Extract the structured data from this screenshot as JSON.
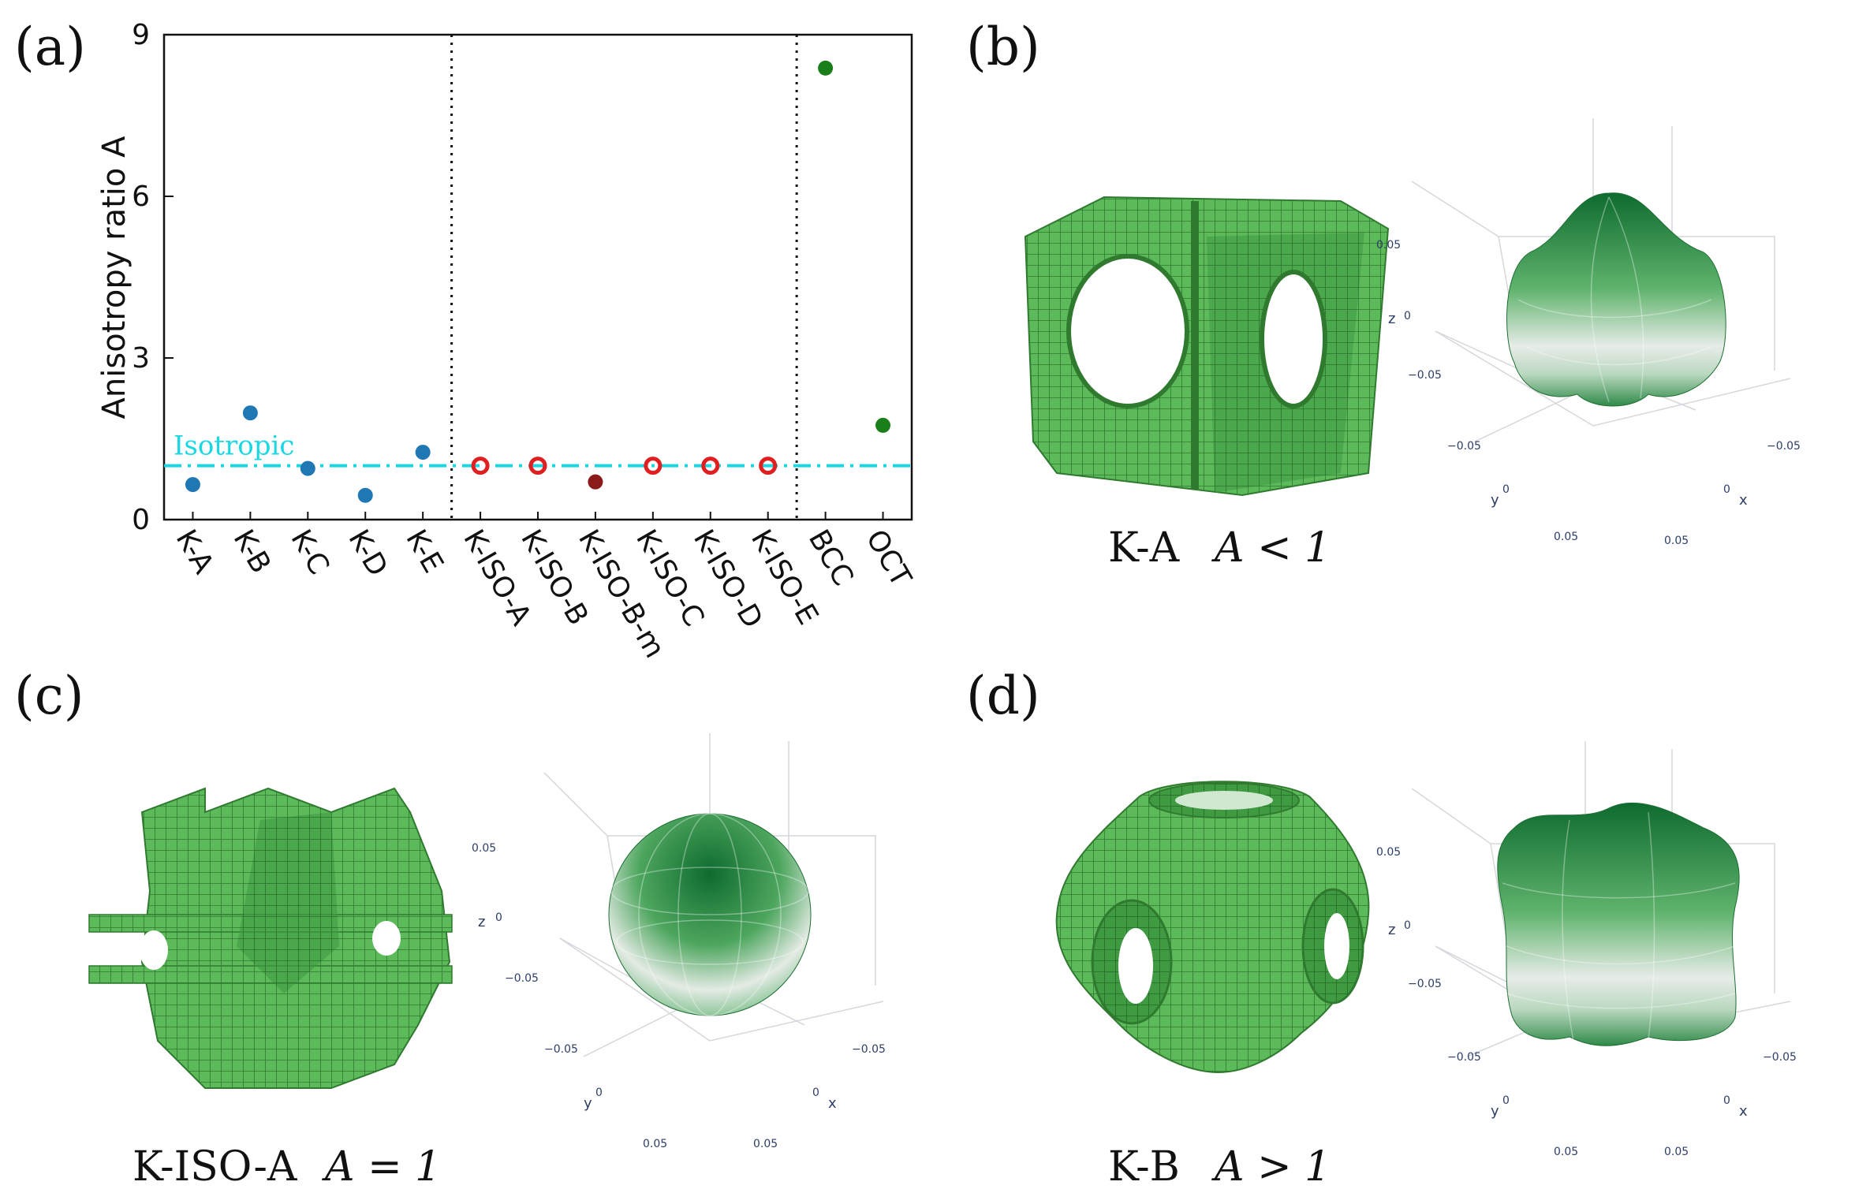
{
  "panels": {
    "a": "(a)",
    "b": "(b)",
    "c": "(c)",
    "d": "(d)"
  },
  "chart_data": {
    "type": "scatter",
    "ylabel": "Anisotropy ratio A",
    "ylim": [
      0,
      9
    ],
    "yticks": [
      "0",
      "3",
      "6",
      "9"
    ],
    "categories": [
      "K-A",
      "K-B",
      "K-C",
      "K-D",
      "K-E",
      "K-ISO-A",
      "K-ISO-B",
      "K-ISO-B-m",
      "K-ISO-C",
      "K-ISO-D",
      "K-ISO-E",
      "BCC",
      "OCT"
    ],
    "series": [
      {
        "group": "K",
        "color": "#1f77b4",
        "marker": "filled-circle",
        "x": [
          "K-A",
          "K-B",
          "K-C",
          "K-D",
          "K-E"
        ],
        "values": [
          0.65,
          1.98,
          0.95,
          0.45,
          1.25
        ]
      },
      {
        "group": "K-ISO",
        "color": "#e02020",
        "marker": "ring",
        "x": [
          "K-ISO-A",
          "K-ISO-B",
          "K-ISO-C",
          "K-ISO-D",
          "K-ISO-E"
        ],
        "values": [
          1.0,
          1.0,
          1.0,
          1.0,
          1.0
        ]
      },
      {
        "group": "K-ISO-B-m",
        "color": "#8b1a1a",
        "marker": "filled-circle",
        "x": [
          "K-ISO-B-m"
        ],
        "values": [
          0.7
        ]
      },
      {
        "group": "reference",
        "color": "#1a7f1a",
        "marker": "filled-circle",
        "x": [
          "BCC",
          "OCT"
        ],
        "values": [
          8.38,
          1.75
        ]
      }
    ],
    "reference_line": {
      "label": "Isotropic",
      "value": 1.0,
      "color": "#1ad7e2",
      "style": "dash-dot"
    },
    "separators_after": [
      "K-E",
      "K-ISO-E"
    ],
    "grid": false
  },
  "captions": {
    "b": {
      "name": "K-A",
      "cond": "A < 1"
    },
    "c": {
      "name": "K-ISO-A",
      "cond": "A = 1"
    },
    "d": {
      "name": "K-B",
      "cond": "A > 1"
    }
  },
  "plot3d_labels": {
    "pos": "0.05",
    "zero": "0",
    "neg": "−0.05",
    "x": "x",
    "y": "y",
    "z": "z"
  },
  "colors": {
    "lattice_green": "#5cb85c",
    "surface_dark": "#0e6b2f"
  }
}
